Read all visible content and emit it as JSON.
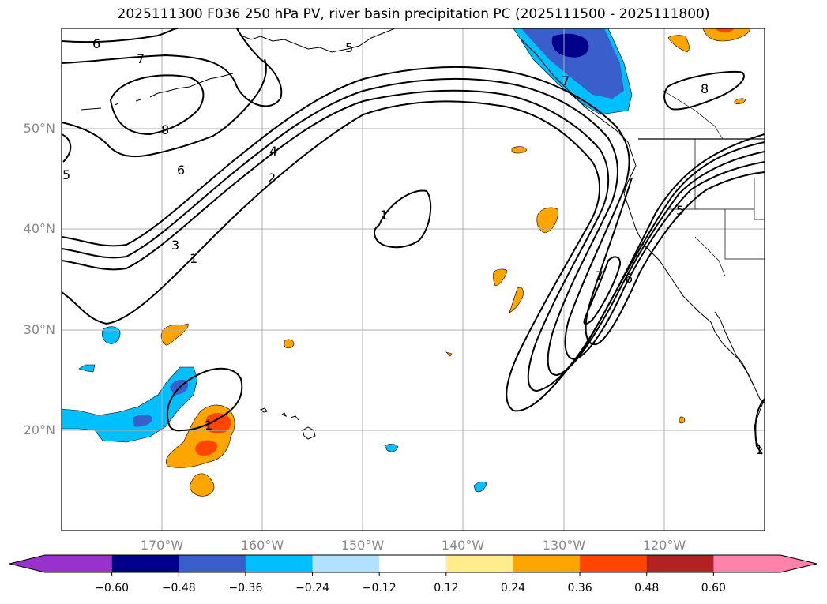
{
  "title": "2025111300 F036 250 hPa PV, river basin precipitation PC (2025111500 - 2025111800)",
  "map": {
    "extent": {
      "lon": [
        -180,
        -110
      ],
      "lat": [
        10,
        60
      ]
    },
    "lat_labels": [
      {
        "lat": 50,
        "text": "50°N"
      },
      {
        "lat": 40,
        "text": "40°N"
      },
      {
        "lat": 30,
        "text": "30°N"
      },
      {
        "lat": 20,
        "text": "20°N"
      }
    ],
    "lon_labels": [
      {
        "lon": -170,
        "text": "170°W"
      },
      {
        "lon": -160,
        "text": "160°W"
      },
      {
        "lon": -150,
        "text": "150°W"
      },
      {
        "lon": -140,
        "text": "140°W"
      },
      {
        "lon": -130,
        "text": "130°W"
      },
      {
        "lon": -120,
        "text": "120°W"
      }
    ],
    "contour_labels": [
      "6",
      "7",
      "8",
      "6",
      "5",
      "4",
      "2",
      "3",
      "1",
      "1",
      "5",
      "7",
      "8",
      "7",
      "6",
      "5",
      "1",
      "1"
    ],
    "gridline_color": "#b0b0b0",
    "contour_color": "#000000"
  },
  "colorbar": {
    "colors": [
      "#9932cc",
      "#00008b",
      "#3a5fcd",
      "#00bfff",
      "#b0e2ff",
      "#ffffff",
      "#ffec8b",
      "#ffa500",
      "#ff4500",
      "#b22222",
      "#ff82ab"
    ],
    "ticks": [
      "−0.60",
      "−0.48",
      "−0.36",
      "−0.24",
      "−0.12",
      "0.12",
      "0.24",
      "0.36",
      "0.48",
      "0.60"
    ],
    "extend": "both"
  }
}
